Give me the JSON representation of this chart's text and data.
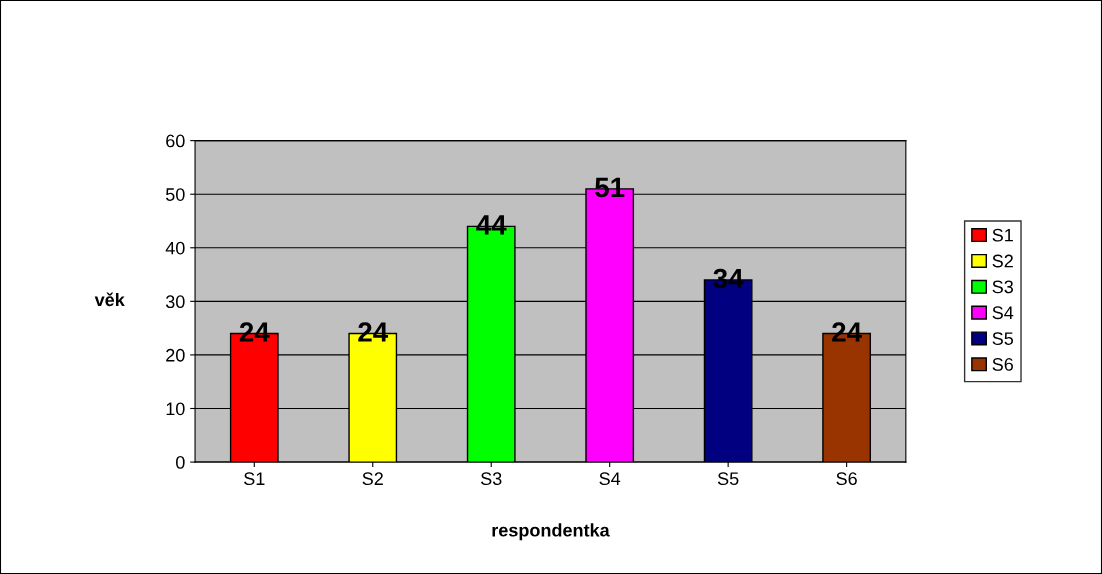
{
  "chart_data": {
    "type": "bar",
    "xlabel": "respondentka",
    "ylabel": "věk",
    "categories": [
      "S1",
      "S2",
      "S3",
      "S4",
      "S5",
      "S6"
    ],
    "series": [
      {
        "name": "S1",
        "color": "#ff0000",
        "values": [
          24,
          null,
          null,
          null,
          null,
          null
        ]
      },
      {
        "name": "S2",
        "color": "#ffff00",
        "values": [
          null,
          24,
          null,
          null,
          null,
          null
        ]
      },
      {
        "name": "S3",
        "color": "#00ff00",
        "values": [
          null,
          null,
          44,
          null,
          null,
          null
        ]
      },
      {
        "name": "S4",
        "color": "#ff00ff",
        "values": [
          null,
          null,
          null,
          51,
          null,
          null
        ]
      },
      {
        "name": "S5",
        "color": "#000080",
        "values": [
          null,
          null,
          null,
          null,
          34,
          null
        ]
      },
      {
        "name": "S6",
        "color": "#993300",
        "values": [
          null,
          null,
          null,
          null,
          null,
          24
        ]
      }
    ],
    "ylim": [
      0,
      60
    ],
    "yticks": [
      0,
      10,
      20,
      30,
      40,
      50,
      60
    ],
    "grid": "y",
    "legend": "right",
    "data_labels": true
  }
}
